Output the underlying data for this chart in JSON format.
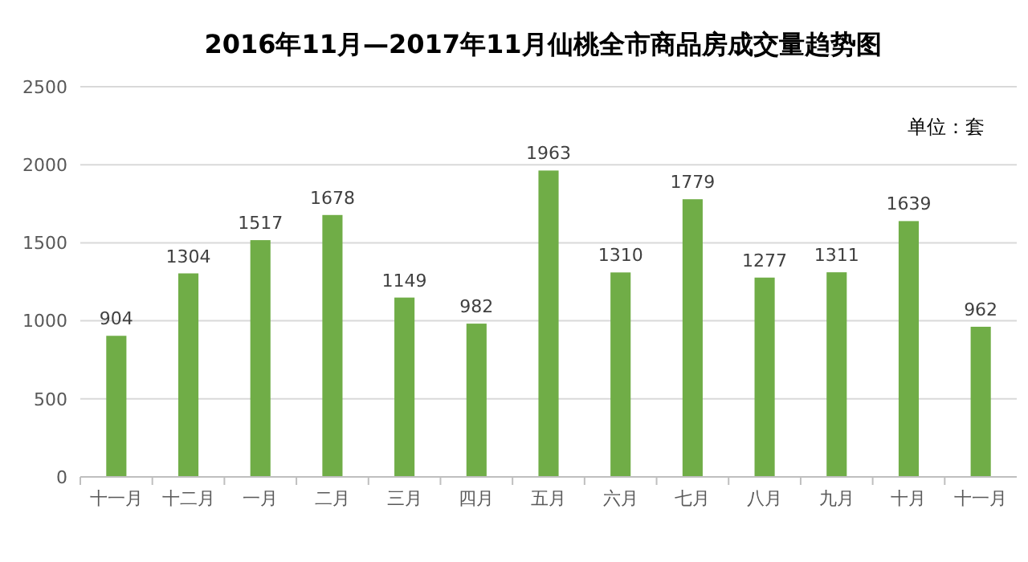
{
  "chart_data": {
    "type": "bar",
    "title": "2016年11月—2017年11月仙桃全市商品房成交量趋势图",
    "annotations": [
      "单位：套"
    ],
    "categories": [
      "十一月",
      "十二月",
      "一月",
      "二月",
      "三月",
      "四月",
      "五月",
      "六月",
      "七月",
      "八月",
      "九月",
      "十月",
      "十一月"
    ],
    "values": [
      904,
      1304,
      1517,
      1678,
      1149,
      982,
      1963,
      1310,
      1779,
      1277,
      1311,
      1639,
      962
    ],
    "color": "#70ad47",
    "ylim": [
      0,
      2500
    ],
    "yticks": [
      0,
      500,
      1000,
      1500,
      2000,
      2500
    ],
    "grid": "y",
    "data_labels": true
  }
}
